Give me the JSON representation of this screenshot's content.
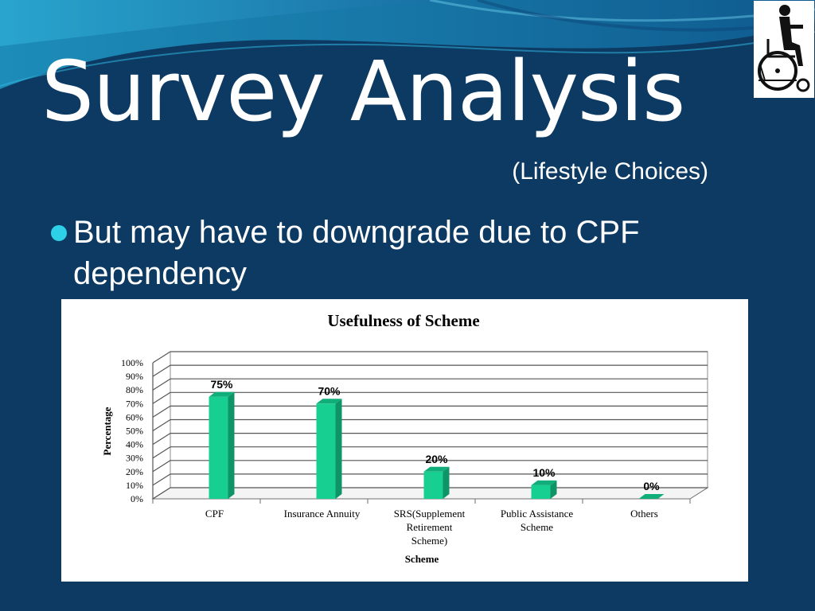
{
  "slide": {
    "title": "Survey Analysis",
    "subtitle": "(Lifestyle Choices)",
    "bullet": "But may have to downgrade due to CPF dependency",
    "picture_icon": "wheelchair-user-icon",
    "colors": {
      "background": "#0d3a63",
      "bullet": "#2ed0e8",
      "bar": "#18cf92"
    }
  },
  "chart_data": {
    "type": "bar",
    "title": "Usefulness of Scheme",
    "xlabel": "Scheme",
    "ylabel": "Percentage",
    "categories": [
      "CPF",
      "Insurance Annuity",
      "SRS(Supplement Retirement Scheme)",
      "Public Assistance Scheme",
      "Others"
    ],
    "category_lines": [
      [
        "CPF"
      ],
      [
        "Insurance Annuity"
      ],
      [
        "SRS(Supplement",
        "Retirement",
        "Scheme)"
      ],
      [
        "Public Assistance",
        "Scheme"
      ],
      [
        "Others"
      ]
    ],
    "values": [
      75,
      70,
      20,
      10,
      0
    ],
    "value_labels": [
      "75%",
      "70%",
      "20%",
      "10%",
      "0%"
    ],
    "ylim": [
      0,
      100
    ],
    "yticks": [
      0,
      10,
      20,
      30,
      40,
      50,
      60,
      70,
      80,
      90,
      100
    ],
    "ytick_labels": [
      "0%",
      "10%",
      "20%",
      "30%",
      "40%",
      "50%",
      "60%",
      "70%",
      "80%",
      "90%",
      "100%"
    ],
    "grid": true,
    "legend": "none",
    "three_d": true
  }
}
